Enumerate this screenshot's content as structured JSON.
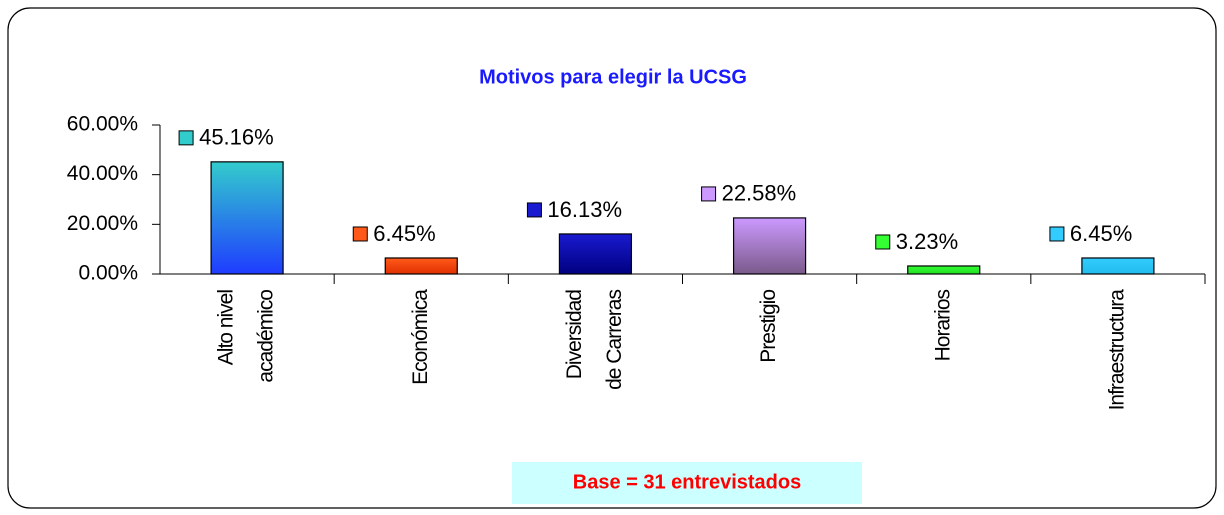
{
  "chart_data": {
    "type": "bar",
    "title": "Motivos para elegir la UCSG",
    "categories": [
      [
        "Alto nivel",
        "académico"
      ],
      [
        "Económica"
      ],
      [
        "Diversidad",
        "de Carreras"
      ],
      [
        "Prestigio"
      ],
      [
        "Horarios"
      ],
      [
        "Infraestructura"
      ]
    ],
    "values": [
      45.16,
      6.45,
      16.13,
      22.58,
      3.23,
      6.45
    ],
    "value_labels": [
      "45.16%",
      "6.45%",
      "16.13%",
      "22.58%",
      "3.23%",
      "6.45%"
    ],
    "colors": [
      [
        "#33cccc",
        "#1f3cff"
      ],
      [
        "#ff5a1a",
        "#e03000"
      ],
      [
        "#1a1ad0",
        "#000080"
      ],
      [
        "#cc99ff",
        "#7a5a8a"
      ],
      [
        "#33ff33",
        "#22dd22"
      ],
      [
        "#33ccff",
        "#22bbee"
      ]
    ],
    "ylim": [
      0,
      60
    ],
    "yticks": [
      {
        "value": 0,
        "label": "0.00%"
      },
      {
        "value": 20,
        "label": "20.00%"
      },
      {
        "value": 40,
        "label": "40.00%"
      },
      {
        "value": 60,
        "label": "60.00%"
      }
    ],
    "annotation": "Base = 31 entrevistados"
  }
}
